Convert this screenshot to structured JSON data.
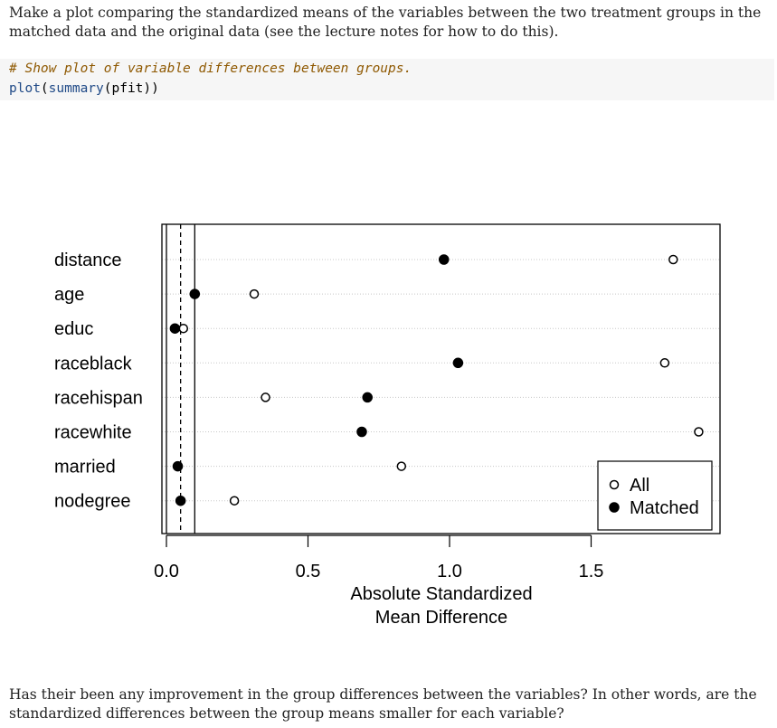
{
  "intro_text": "Make a plot comparing the standardized means of the variables between the two treatment groups in the matched data and the original data (see the lecture notes for how to do this).",
  "code": {
    "comment": "# Show plot of variable differences between groups.",
    "fn_outer": "plot",
    "paren_open": "(",
    "fn_inner": "summary",
    "arg": "(pfit))"
  },
  "question_text": "Has their been any improvement in the group differences between the variables? In other words, are the standardized differences between the group means smaller for each variable?",
  "chart_data": {
    "type": "scatter",
    "xlabel": "Absolute Standardized Mean Difference",
    "xlabel_lines": [
      "Absolute Standardized",
      "Mean Difference"
    ],
    "xlim": [
      0,
      1.95
    ],
    "xticks": [
      0.0,
      0.5,
      1.0,
      1.5
    ],
    "xtick_labels": [
      "0.0",
      "0.5",
      "1.0",
      "1.5"
    ],
    "reference_lines": {
      "solid": [
        0,
        0.1
      ],
      "dashed": [
        0.05
      ]
    },
    "categories": [
      "distance",
      "age",
      "educ",
      "raceblack",
      "racehispan",
      "racewhite",
      "married",
      "nodegree"
    ],
    "series": [
      {
        "name": "All",
        "marker": "open-circle",
        "values": [
          1.79,
          0.31,
          0.06,
          1.76,
          0.35,
          1.88,
          0.83,
          0.24
        ]
      },
      {
        "name": "Matched",
        "marker": "filled-circle",
        "values": [
          0.98,
          0.1,
          0.03,
          1.03,
          0.71,
          0.69,
          0.04,
          0.05
        ]
      }
    ],
    "legend_position": "bottom-right",
    "grid": "dotted horizontal"
  }
}
